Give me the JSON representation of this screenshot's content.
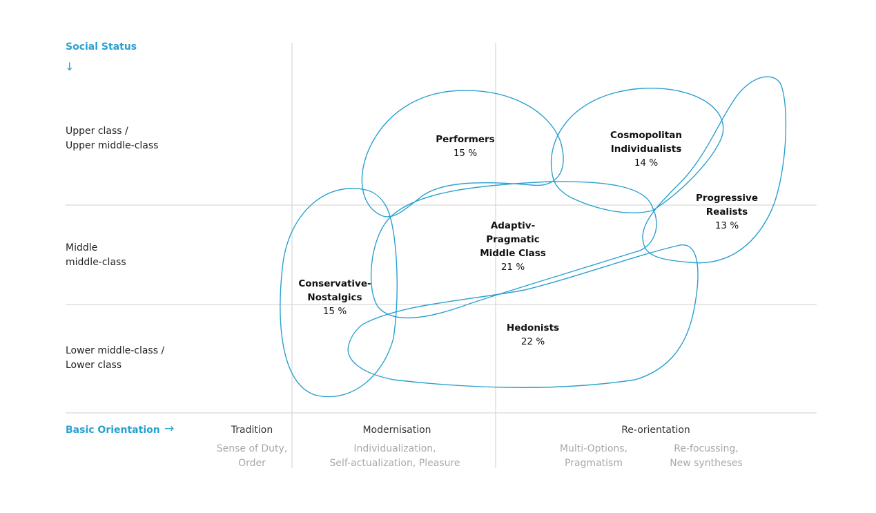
{
  "axes": {
    "y_title": "Social Status",
    "y_arrow": "↓",
    "x_title": "Basic Orientation",
    "x_arrow": "→"
  },
  "rows": [
    {
      "line1": "Upper class /",
      "line2": "Upper middle-class"
    },
    {
      "line1": "Middle",
      "line2": "middle-class"
    },
    {
      "line1": "Lower middle-class /",
      "line2": "Lower class"
    }
  ],
  "columns": [
    {
      "title": "Tradition",
      "sub": [
        {
          "line1": "Sense of Duty,",
          "line2": "Order"
        }
      ]
    },
    {
      "title": "Modernisation",
      "sub": [
        {
          "line1": "Individualization,",
          "line2": "Self-actualization, Pleasure"
        }
      ]
    },
    {
      "title": "Re-orientation",
      "sub": [
        {
          "line1": "Multi-Options,",
          "line2": "Pragmatism"
        },
        {
          "line1": "Re-focussing,",
          "line2": "New syntheses"
        }
      ]
    }
  ],
  "milieus": [
    {
      "name": "Performers",
      "share": "15 %"
    },
    {
      "name": "Cosmopolitan\nIndividualists",
      "share": "14 %"
    },
    {
      "name": "Progressive\nRealists",
      "share": "13 %"
    },
    {
      "name": "Adaptiv-\nPragmatic\nMiddle Class",
      "share": "21 %"
    },
    {
      "name": "Conservative-\nNostalgics",
      "share": "15 %"
    },
    {
      "name": "Hedonists",
      "share": "22 %"
    }
  ],
  "colors": {
    "accent": "#2aa0d0",
    "outline": "#2aa0d0",
    "grid": "#cfcfcf"
  }
}
